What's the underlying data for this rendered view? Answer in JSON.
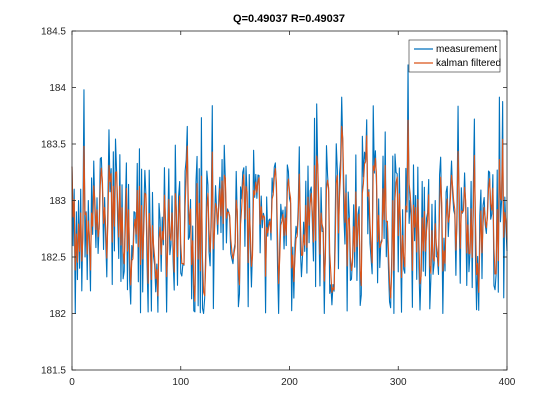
{
  "chart_data": {
    "type": "line",
    "title": "Q=0.49037 R=0.49037",
    "xlabel": "",
    "ylabel": "",
    "xlim": [
      0,
      400
    ],
    "ylim": [
      181.5,
      184.5
    ],
    "xticks": [
      0,
      100,
      200,
      300,
      400
    ],
    "yticks": [
      181.5,
      182,
      182.5,
      183,
      183.5,
      184,
      184.5
    ],
    "xtick_labels": [
      "0",
      "100",
      "200",
      "300",
      "400"
    ],
    "ytick_labels": [
      "181.5",
      "182",
      "182.5",
      "183",
      "183.5",
      "184",
      "184.5"
    ],
    "grid": false,
    "legend_position": "top-right",
    "series": [
      {
        "name": "measurement",
        "color": "#0072BD",
        "n_points": 401,
        "values_sample": [
          183.3,
          182.6,
          183.1,
          182.0,
          182.9,
          182.3,
          183.0,
          182.4,
          183.1,
          182.2,
          182.8,
          183.98,
          182.5,
          182.9,
          182.3,
          183.0,
          182.6,
          182.2,
          183.2,
          182.7
        ],
        "range": [
          182.0,
          184.2
        ],
        "peak": {
          "x": 309,
          "y": 184.2
        },
        "approx_mean": 182.75
      },
      {
        "name": "kalman filtered",
        "color": "#D95319",
        "n_points": 401,
        "range": [
          182.1,
          183.7
        ],
        "approx_mean": 182.75
      }
    ]
  }
}
